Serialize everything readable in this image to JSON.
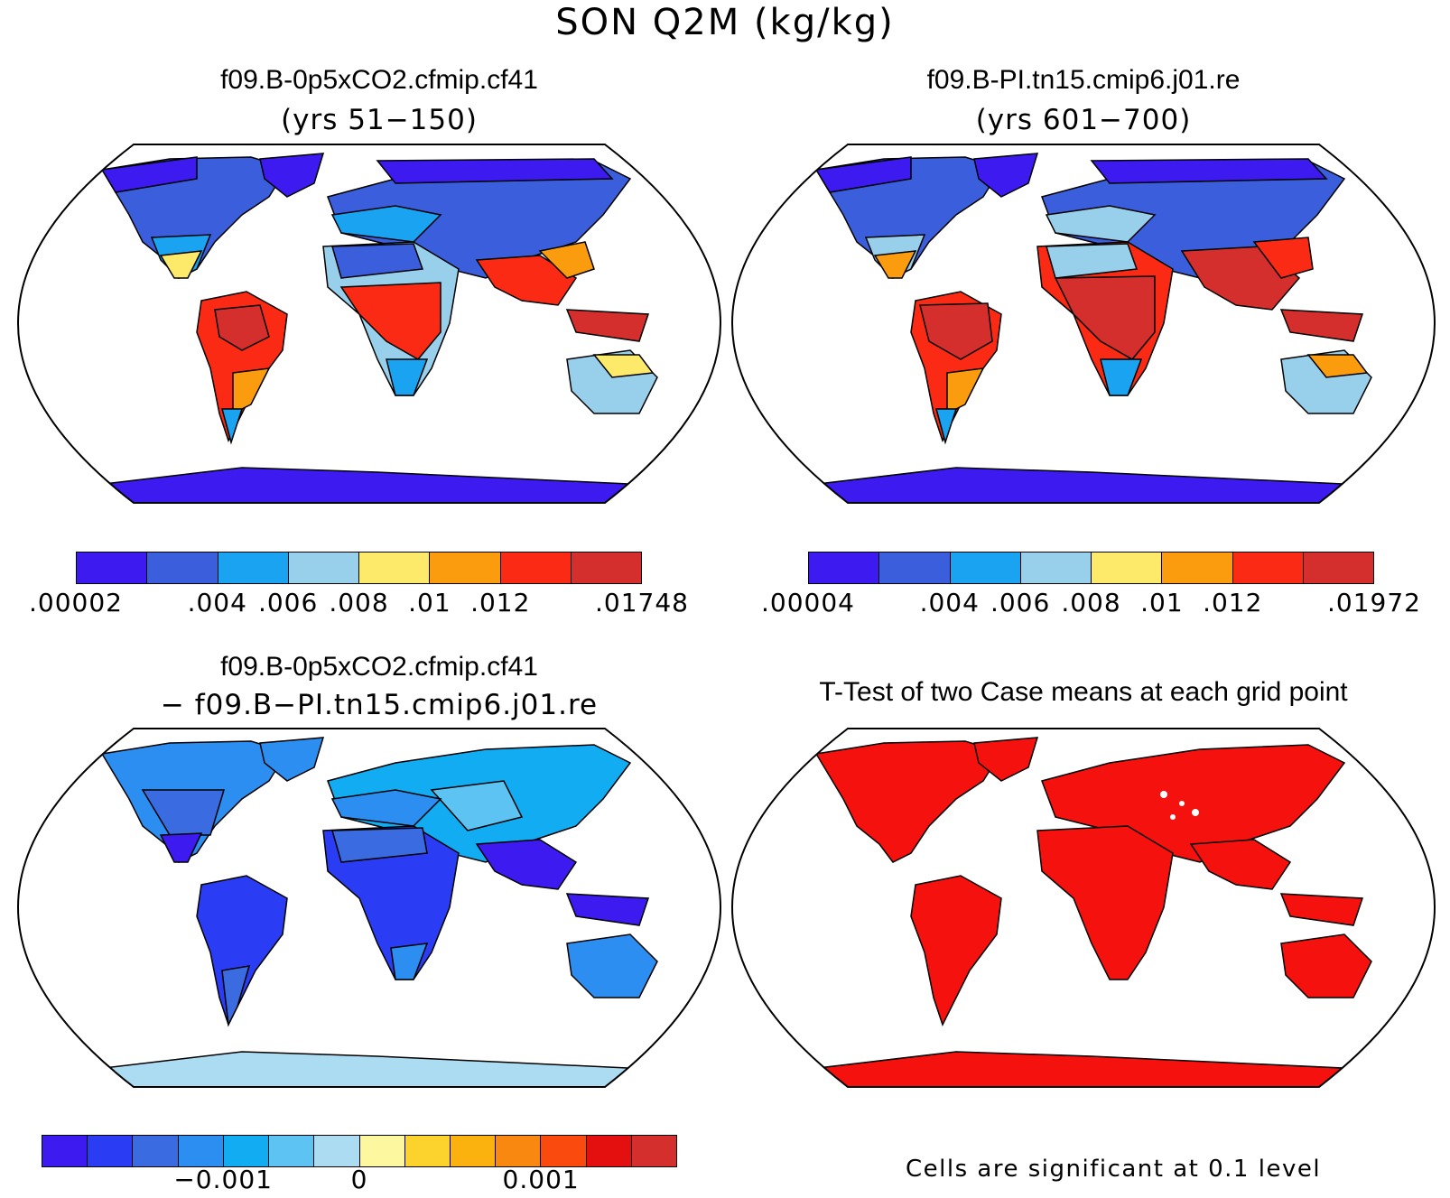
{
  "figure": {
    "title": "SON Q2M (kg/kg)"
  },
  "panels": {
    "top_left": {
      "title": "f09.B-0p5xCO2.cfmip.cf41",
      "subtitle": "(yrs 51−150)",
      "field": "absolute",
      "colorbar": {
        "colors": [
          "#3d1af0",
          "#3b5fdc",
          "#19a3f0",
          "#98d0ec",
          "#fde96a",
          "#fb9c0f",
          "#fb2a14",
          "#d42f2c"
        ],
        "tick_labels": [
          ".00002",
          ".004",
          ".006",
          ".008",
          ".01",
          ".012",
          ".01748"
        ],
        "tick_positions": [
          0,
          2,
          3,
          4,
          5,
          6,
          8
        ]
      }
    },
    "top_right": {
      "title": "f09.B-PI.tn15.cmip6.j01.re",
      "subtitle": "(yrs 601−700)",
      "field": "absolute",
      "colorbar": {
        "colors": [
          "#3d1af0",
          "#3b5fdc",
          "#19a3f0",
          "#98d0ec",
          "#fde96a",
          "#fb9c0f",
          "#fb2a14",
          "#d42f2c"
        ],
        "tick_labels": [
          ".00004",
          ".004",
          ".006",
          ".008",
          ".01",
          ".012",
          ".01972"
        ],
        "tick_positions": [
          0,
          2,
          3,
          4,
          5,
          6,
          8
        ]
      }
    },
    "bottom_left": {
      "title": "f09.B-0p5xCO2.cfmip.cf41",
      "subtitle": "− f09.B−PI.tn15.cmip6.j01.re",
      "field": "difference",
      "colorbar": {
        "colors": [
          "#3d1af0",
          "#2a3df4",
          "#3b6be0",
          "#2b8ef0",
          "#12acf2",
          "#5cc3f2",
          "#acdcf2",
          "#fdf7a0",
          "#fcd22c",
          "#fbb20f",
          "#f98811",
          "#fb4a0e",
          "#e40f0f",
          "#d42f2c"
        ],
        "tick_labels": [
          "−0.001",
          "0",
          "0.001"
        ],
        "tick_positions": [
          4,
          7,
          11
        ]
      }
    },
    "bottom_right": {
      "title": "T-Test of two Case means at each grid point",
      "field": "significance",
      "note": "Cells are significant at 0.1 level",
      "significant_color": "#f5110d"
    }
  }
}
